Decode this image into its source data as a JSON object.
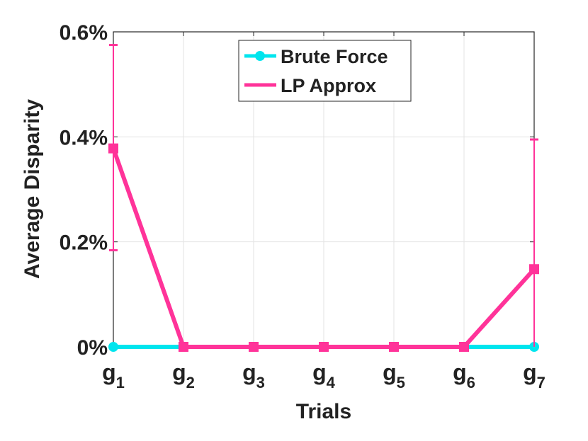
{
  "chart_data": {
    "type": "line",
    "title": "",
    "xlabel": "Trials",
    "ylabel": "Average Disparity",
    "categories": [
      {
        "base": "g",
        "sub": "1"
      },
      {
        "base": "g",
        "sub": "2"
      },
      {
        "base": "g",
        "sub": "3"
      },
      {
        "base": "g",
        "sub": "4"
      },
      {
        "base": "g",
        "sub": "5"
      },
      {
        "base": "g",
        "sub": "6"
      },
      {
        "base": "g",
        "sub": "7"
      }
    ],
    "ylim": [
      0,
      0.6
    ],
    "yticks": [
      0,
      0.2,
      0.4,
      0.6
    ],
    "ytick_labels": [
      "0%",
      "0.2%",
      "0.4%",
      "0.6%"
    ],
    "grid": true,
    "legend_position": "top-center",
    "series": [
      {
        "name": "Brute Force",
        "color": "#00e5ee",
        "marker": "circle",
        "values": [
          0,
          0,
          0,
          0,
          0,
          0,
          0
        ]
      },
      {
        "name": "LP Approx",
        "color": "#ff3399",
        "marker": "square",
        "values": [
          0.378,
          0,
          0,
          0,
          0,
          0,
          0.148
        ],
        "error_low": [
          0.184,
          0,
          0,
          0,
          0,
          0,
          0
        ],
        "error_high": [
          0.575,
          0,
          0,
          0,
          0,
          0,
          0.395
        ]
      }
    ]
  }
}
